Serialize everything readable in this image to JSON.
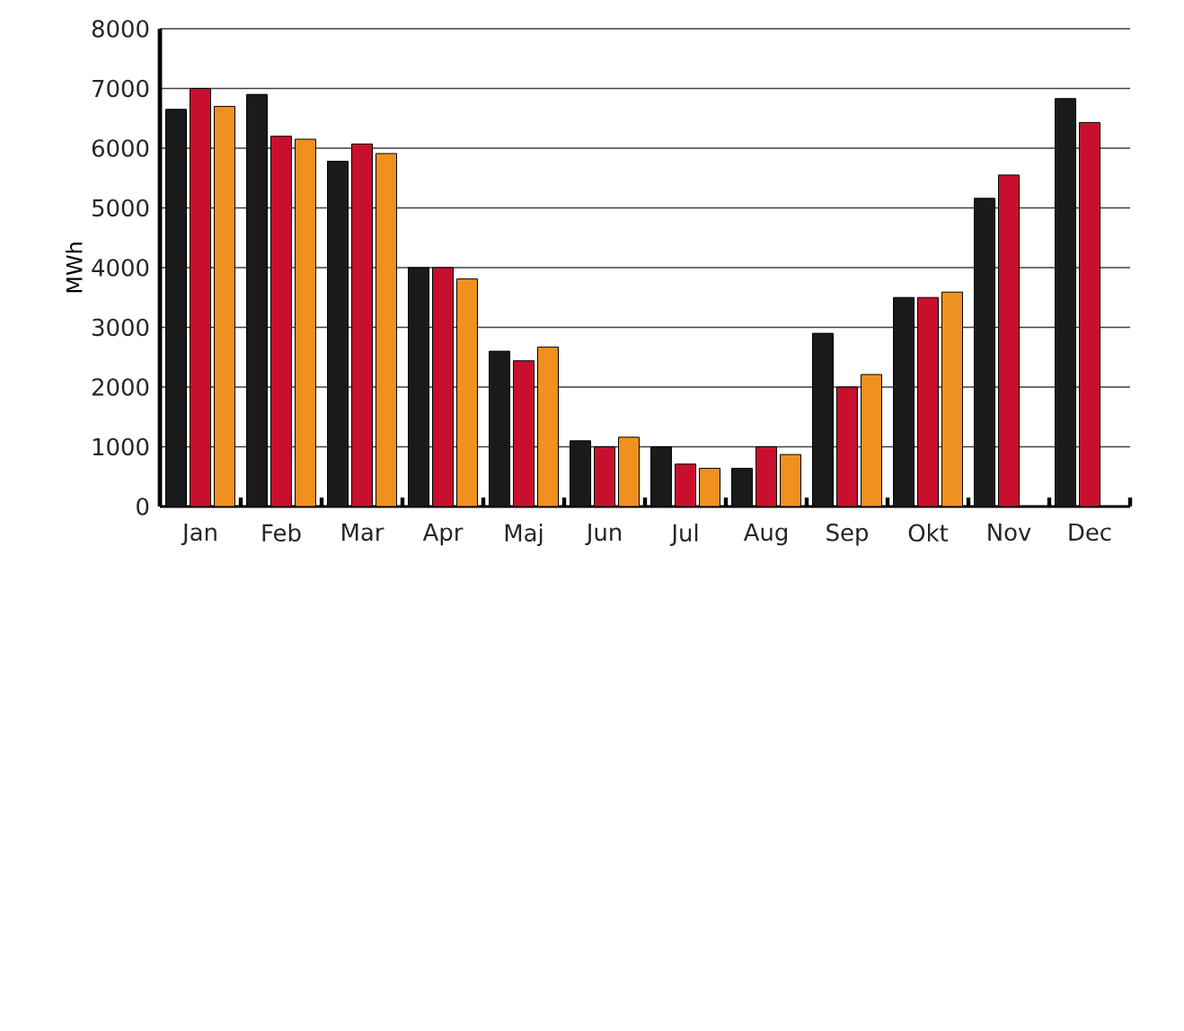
{
  "chart_data": {
    "type": "bar",
    "ylabel": "MWh",
    "categories": [
      "Jan",
      "Feb",
      "Mar",
      "Apr",
      "Maj",
      "Jun",
      "Jul",
      "Aug",
      "Sep",
      "Okt",
      "Nov",
      "Dec"
    ],
    "series": [
      {
        "color": "#1a1a1a",
        "values": [
          6650,
          6900,
          5780,
          4000,
          2600,
          1100,
          1000,
          640,
          2900,
          3500,
          5160,
          6830
        ]
      },
      {
        "color": "#c8102e",
        "values": [
          7000,
          6200,
          6070,
          4000,
          2440,
          1000,
          710,
          1000,
          2000,
          3500,
          5550,
          6430
        ]
      },
      {
        "color": "#f0901e",
        "values": [
          6700,
          6150,
          5910,
          3810,
          2670,
          1160,
          640,
          870,
          2210,
          3590,
          null,
          null
        ]
      }
    ],
    "ylim": [
      0,
      8000
    ],
    "yticks": [
      0,
      1000,
      2000,
      3000,
      4000,
      5000,
      6000,
      7000,
      8000
    ],
    "grid": "y"
  }
}
